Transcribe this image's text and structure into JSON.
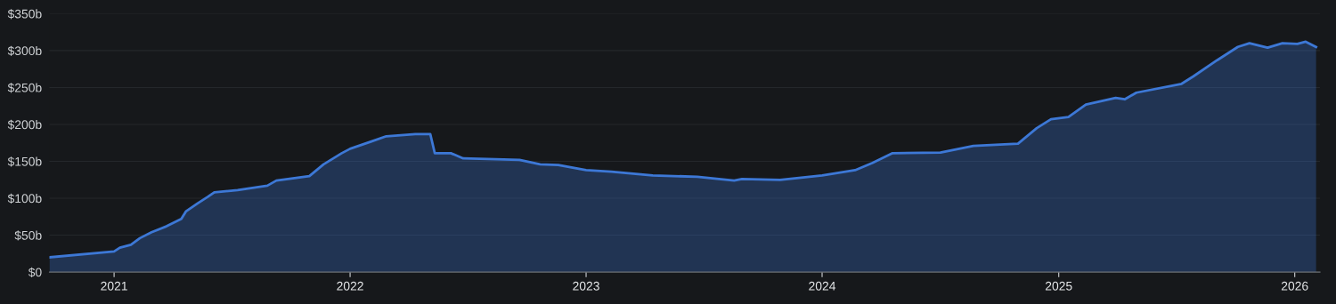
{
  "chart_data": {
    "type": "area",
    "x": [
      "2020-09-23",
      "2021-01-01",
      "2021-01-10",
      "2021-01-27",
      "2021-02-10",
      "2021-02-28",
      "2021-03-23",
      "2021-04-15",
      "2021-04-22",
      "2021-05-10",
      "2021-05-26",
      "2021-06-05",
      "2021-07-11",
      "2021-08-26",
      "2021-09-09",
      "2021-10-30",
      "2021-11-21",
      "2021-12-19",
      "2022-01-01",
      "2022-02-03",
      "2022-02-26",
      "2022-04-12",
      "2022-05-05",
      "2022-05-12",
      "2022-06-06",
      "2022-06-25",
      "2022-09-20",
      "2022-10-22",
      "2022-11-19",
      "2023-01-01",
      "2023-02-09",
      "2023-04-14",
      "2023-06-22",
      "2023-08-18",
      "2023-08-30",
      "2023-10-28",
      "2024-01-01",
      "2024-02-21",
      "2024-03-19",
      "2024-04-19",
      "2024-07-02",
      "2024-08-22",
      "2024-10-30",
      "2024-11-28",
      "2024-12-20",
      "2025-01-16",
      "2025-02-12",
      "2025-03-30",
      "2025-04-13",
      "2025-05-01",
      "2025-07-10",
      "2025-07-28",
      "2025-09-03",
      "2025-10-05",
      "2025-10-23",
      "2025-11-20",
      "2025-12-13",
      "2026-01-05",
      "2026-01-18",
      "2026-02-03"
    ],
    "series": [
      {
        "color": "#3d78d6",
        "values": [
          20,
          28,
          33,
          37,
          46,
          54,
          62,
          72,
          82,
          93,
          102,
          108,
          111,
          117,
          124,
          130,
          146,
          161,
          167,
          177,
          184,
          187,
          187,
          161,
          161,
          154,
          152,
          146,
          145,
          138,
          136,
          131,
          129,
          124,
          126,
          125,
          131,
          138,
          148,
          161,
          162,
          171,
          174,
          195,
          207,
          210,
          227,
          236,
          234,
          243,
          255,
          265,
          287,
          305,
          310,
          304,
          310,
          309,
          312,
          305
        ]
      }
    ],
    "xlim": [
      "2020-09-23",
      "2026-02-09"
    ],
    "xticks": [
      {
        "value": "2021-01-01",
        "label": "2021"
      },
      {
        "value": "2022-01-01",
        "label": "2022"
      },
      {
        "value": "2023-01-01",
        "label": "2023"
      },
      {
        "value": "2024-01-01",
        "label": "2024"
      },
      {
        "value": "2025-01-01",
        "label": "2025"
      },
      {
        "value": "2026-01-01",
        "label": "2026"
      }
    ],
    "ylim": [
      0,
      350
    ],
    "yticks": [
      {
        "value": 0,
        "label": "$0"
      },
      {
        "value": 50,
        "label": "$50b"
      },
      {
        "value": 100,
        "label": "$100b"
      },
      {
        "value": 150,
        "label": "$150b"
      },
      {
        "value": 200,
        "label": "$200b"
      },
      {
        "value": 250,
        "label": "$250b"
      },
      {
        "value": 300,
        "label": "$300b"
      },
      {
        "value": 350,
        "label": "$350b"
      }
    ],
    "grid": "y"
  }
}
